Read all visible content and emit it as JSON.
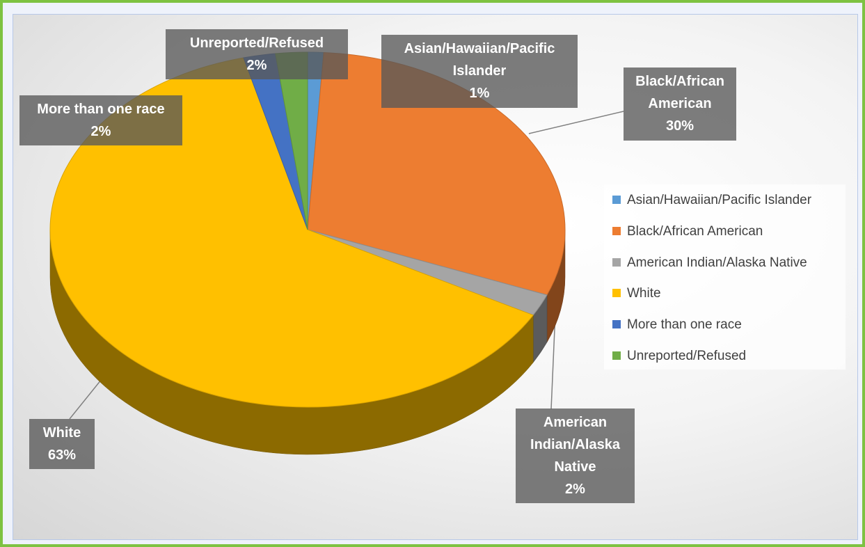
{
  "chart_data": {
    "type": "pie",
    "categories": [
      "Asian/Hawaiian/Pacific Islander",
      "Black/African American",
      "American Indian/Alaska Native",
      "White",
      "More than one race",
      "Unreported/Refused"
    ],
    "values": [
      1,
      30,
      2,
      63,
      2,
      2
    ],
    "value_labels": [
      "1%",
      "30%",
      "2%",
      "63%",
      "2%",
      "2%"
    ],
    "colors": [
      "#5b9bd5",
      "#ed7d31",
      "#a5a5a5",
      "#ffc000",
      "#4472c4",
      "#70ad47"
    ],
    "legend": "right"
  }
}
